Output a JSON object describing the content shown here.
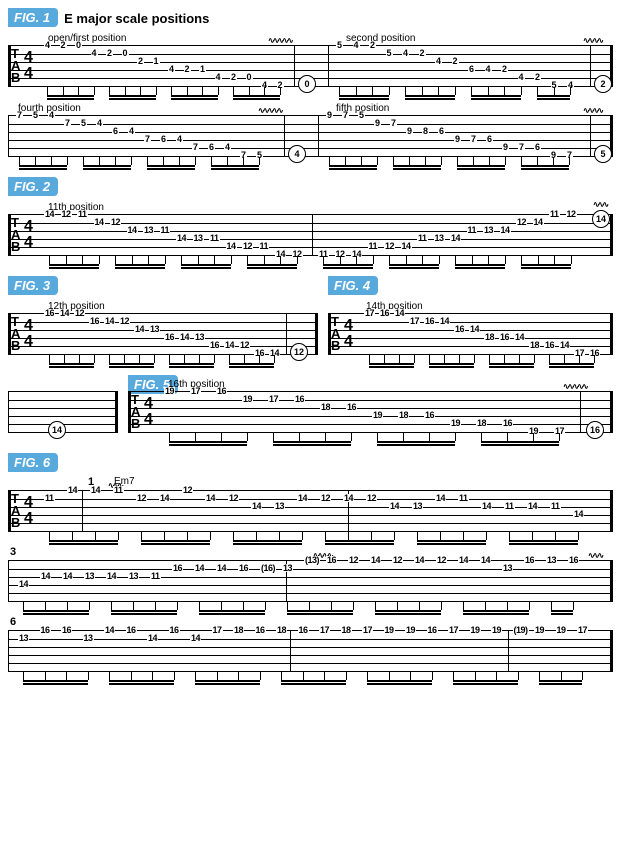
{
  "figures": {
    "fig1": {
      "label": "FIG. 1",
      "title": "E major scale positions"
    },
    "fig2": {
      "label": "FIG. 2"
    },
    "fig3": {
      "label": "FIG. 3"
    },
    "fig4": {
      "label": "FIG. 4"
    },
    "fig5": {
      "label": "FIG. 5"
    },
    "fig6": {
      "label": "FIG. 6"
    }
  },
  "positions": {
    "p1a": "open/first position",
    "p1b": "second position",
    "p1c": "fourth position",
    "p1d": "fifth position",
    "p2": "11th position",
    "p3": "12th position",
    "p4": "14th position",
    "p5": "16th position"
  },
  "clef": {
    "t": "T",
    "a": "A",
    "b": "B"
  },
  "timesig": {
    "num": "4",
    "den": "4"
  },
  "chords": {
    "em7": "Em7"
  },
  "barnums": {
    "b1": "1",
    "b3": "3",
    "b6": "6"
  },
  "endnotes": {
    "e0": "0",
    "e2": "2",
    "e4": "4",
    "e5": "5",
    "e14": "14",
    "e12": "12",
    "e16": "16"
  },
  "tabs": {
    "r1a": [
      {
        "s": 0,
        "f": "4"
      },
      {
        "s": 0,
        "f": "2"
      },
      {
        "s": 0,
        "f": "0"
      },
      {
        "s": 1,
        "f": "4"
      },
      {
        "s": 1,
        "f": "2"
      },
      {
        "s": 1,
        "f": "0"
      },
      {
        "s": 2,
        "f": "2"
      },
      {
        "s": 2,
        "f": "1"
      },
      {
        "s": 3,
        "f": "4"
      },
      {
        "s": 3,
        "f": "2"
      },
      {
        "s": 3,
        "f": "1"
      },
      {
        "s": 4,
        "f": "4"
      },
      {
        "s": 4,
        "f": "2"
      },
      {
        "s": 4,
        "f": "0"
      },
      {
        "s": 5,
        "f": "4"
      },
      {
        "s": 5,
        "f": "2"
      }
    ],
    "r1b": [
      {
        "s": 0,
        "f": "5"
      },
      {
        "s": 0,
        "f": "4"
      },
      {
        "s": 0,
        "f": "2"
      },
      {
        "s": 1,
        "f": "5"
      },
      {
        "s": 1,
        "f": "4"
      },
      {
        "s": 1,
        "f": "2"
      },
      {
        "s": 2,
        "f": "4"
      },
      {
        "s": 2,
        "f": "2"
      },
      {
        "s": 3,
        "f": "6"
      },
      {
        "s": 3,
        "f": "4"
      },
      {
        "s": 3,
        "f": "2"
      },
      {
        "s": 4,
        "f": "4"
      },
      {
        "s": 4,
        "f": "2"
      },
      {
        "s": 5,
        "f": "5"
      },
      {
        "s": 5,
        "f": "4"
      }
    ],
    "r1c": [
      {
        "s": 0,
        "f": "7"
      },
      {
        "s": 0,
        "f": "5"
      },
      {
        "s": 0,
        "f": "4"
      },
      {
        "s": 1,
        "f": "7"
      },
      {
        "s": 1,
        "f": "5"
      },
      {
        "s": 1,
        "f": "4"
      },
      {
        "s": 2,
        "f": "6"
      },
      {
        "s": 2,
        "f": "4"
      },
      {
        "s": 3,
        "f": "7"
      },
      {
        "s": 3,
        "f": "6"
      },
      {
        "s": 3,
        "f": "4"
      },
      {
        "s": 4,
        "f": "7"
      },
      {
        "s": 4,
        "f": "6"
      },
      {
        "s": 4,
        "f": "4"
      },
      {
        "s": 5,
        "f": "7"
      },
      {
        "s": 5,
        "f": "5"
      }
    ],
    "r1d": [
      {
        "s": 0,
        "f": "9"
      },
      {
        "s": 0,
        "f": "7"
      },
      {
        "s": 0,
        "f": "5"
      },
      {
        "s": 1,
        "f": "9"
      },
      {
        "s": 1,
        "f": "7"
      },
      {
        "s": 2,
        "f": "9"
      },
      {
        "s": 2,
        "f": "8"
      },
      {
        "s": 2,
        "f": "6"
      },
      {
        "s": 3,
        "f": "9"
      },
      {
        "s": 3,
        "f": "7"
      },
      {
        "s": 3,
        "f": "6"
      },
      {
        "s": 4,
        "f": "9"
      },
      {
        "s": 4,
        "f": "7"
      },
      {
        "s": 4,
        "f": "6"
      },
      {
        "s": 5,
        "f": "9"
      },
      {
        "s": 5,
        "f": "7"
      }
    ],
    "r2a": [
      {
        "s": 0,
        "f": "14"
      },
      {
        "s": 0,
        "f": "12"
      },
      {
        "s": 0,
        "f": "11"
      },
      {
        "s": 1,
        "f": "14"
      },
      {
        "s": 1,
        "f": "12"
      },
      {
        "s": 2,
        "f": "14"
      },
      {
        "s": 2,
        "f": "13"
      },
      {
        "s": 2,
        "f": "11"
      },
      {
        "s": 3,
        "f": "14"
      },
      {
        "s": 3,
        "f": "13"
      },
      {
        "s": 3,
        "f": "11"
      },
      {
        "s": 4,
        "f": "14"
      },
      {
        "s": 4,
        "f": "12"
      },
      {
        "s": 4,
        "f": "11"
      },
      {
        "s": 5,
        "f": "14"
      },
      {
        "s": 5,
        "f": "12"
      }
    ],
    "r2b": [
      {
        "s": 5,
        "f": "11"
      },
      {
        "s": 5,
        "f": "12"
      },
      {
        "s": 5,
        "f": "14"
      },
      {
        "s": 4,
        "f": "11"
      },
      {
        "s": 4,
        "f": "12"
      },
      {
        "s": 4,
        "f": "14"
      },
      {
        "s": 3,
        "f": "11"
      },
      {
        "s": 3,
        "f": "13"
      },
      {
        "s": 3,
        "f": "14"
      },
      {
        "s": 2,
        "f": "11"
      },
      {
        "s": 2,
        "f": "13"
      },
      {
        "s": 2,
        "f": "14"
      },
      {
        "s": 1,
        "f": "12"
      },
      {
        "s": 1,
        "f": "14"
      },
      {
        "s": 0,
        "f": "11"
      },
      {
        "s": 0,
        "f": "12"
      }
    ],
    "r3": [
      {
        "s": 0,
        "f": "16"
      },
      {
        "s": 0,
        "f": "14"
      },
      {
        "s": 0,
        "f": "12"
      },
      {
        "s": 1,
        "f": "16"
      },
      {
        "s": 1,
        "f": "14"
      },
      {
        "s": 1,
        "f": "12"
      },
      {
        "s": 2,
        "f": "14"
      },
      {
        "s": 2,
        "f": "13"
      },
      {
        "s": 3,
        "f": "16"
      },
      {
        "s": 3,
        "f": "14"
      },
      {
        "s": 3,
        "f": "13"
      },
      {
        "s": 4,
        "f": "16"
      },
      {
        "s": 4,
        "f": "14"
      },
      {
        "s": 4,
        "f": "12"
      },
      {
        "s": 5,
        "f": "16"
      },
      {
        "s": 5,
        "f": "14"
      }
    ],
    "r4": [
      {
        "s": 0,
        "f": "17"
      },
      {
        "s": 0,
        "f": "16"
      },
      {
        "s": 0,
        "f": "14"
      },
      {
        "s": 1,
        "f": "17"
      },
      {
        "s": 1,
        "f": "16"
      },
      {
        "s": 1,
        "f": "14"
      },
      {
        "s": 2,
        "f": "16"
      },
      {
        "s": 2,
        "f": "14"
      },
      {
        "s": 3,
        "f": "18"
      },
      {
        "s": 3,
        "f": "16"
      },
      {
        "s": 3,
        "f": "14"
      },
      {
        "s": 4,
        "f": "18"
      },
      {
        "s": 4,
        "f": "16"
      },
      {
        "s": 4,
        "f": "14"
      },
      {
        "s": 5,
        "f": "17"
      },
      {
        "s": 5,
        "f": "16"
      }
    ],
    "r5": [
      {
        "s": 0,
        "f": "19"
      },
      {
        "s": 0,
        "f": "17"
      },
      {
        "s": 0,
        "f": "16"
      },
      {
        "s": 1,
        "f": "19"
      },
      {
        "s": 1,
        "f": "17"
      },
      {
        "s": 1,
        "f": "16"
      },
      {
        "s": 2,
        "f": "18"
      },
      {
        "s": 2,
        "f": "16"
      },
      {
        "s": 3,
        "f": "19"
      },
      {
        "s": 3,
        "f": "18"
      },
      {
        "s": 3,
        "f": "16"
      },
      {
        "s": 4,
        "f": "19"
      },
      {
        "s": 4,
        "f": "18"
      },
      {
        "s": 4,
        "f": "16"
      },
      {
        "s": 5,
        "f": "19"
      },
      {
        "s": 5,
        "f": "17"
      }
    ],
    "r6a": [
      {
        "s": 1,
        "f": "11"
      },
      {
        "s": 0,
        "f": "14"
      },
      {
        "s": 0,
        "f": "14"
      },
      {
        "s": 0,
        "f": "11"
      },
      {
        "s": 1,
        "f": "12"
      },
      {
        "s": 1,
        "f": "14"
      },
      {
        "s": 0,
        "f": "12"
      },
      {
        "s": 1,
        "f": "14"
      },
      {
        "s": 1,
        "f": "12"
      },
      {
        "s": 2,
        "f": "14"
      },
      {
        "s": 2,
        "f": "13"
      },
      {
        "s": 1,
        "f": "14"
      },
      {
        "s": 1,
        "f": "12"
      },
      {
        "s": 1,
        "f": "14"
      },
      {
        "s": 1,
        "f": "12"
      },
      {
        "s": 2,
        "f": "14"
      },
      {
        "s": 2,
        "f": "13"
      },
      {
        "s": 1,
        "f": "14"
      },
      {
        "s": 1,
        "f": "11"
      },
      {
        "s": 2,
        "f": "14"
      },
      {
        "s": 2,
        "f": "11"
      },
      {
        "s": 2,
        "f": "14"
      },
      {
        "s": 2,
        "f": "11"
      },
      {
        "s": 3,
        "f": "14"
      }
    ],
    "r6b": [
      {
        "s": 3,
        "f": "14"
      },
      {
        "s": 2,
        "f": "14"
      },
      {
        "s": 2,
        "f": "14"
      },
      {
        "s": 2,
        "f": "13"
      },
      {
        "s": 2,
        "f": "14"
      },
      {
        "s": 2,
        "f": "13"
      },
      {
        "s": 2,
        "f": "11"
      },
      {
        "s": 1,
        "f": "16"
      },
      {
        "s": 1,
        "f": "14"
      },
      {
        "s": 1,
        "f": "14"
      },
      {
        "s": 1,
        "f": "16"
      },
      {
        "s": 1,
        "f": "(16)"
      },
      {
        "s": 1,
        "f": "13"
      },
      {
        "s": 0,
        "f": "(13)"
      },
      {
        "s": 0,
        "f": "16"
      },
      {
        "s": 0,
        "f": "12"
      },
      {
        "s": 0,
        "f": "14"
      },
      {
        "s": 0,
        "f": "12"
      },
      {
        "s": 0,
        "f": "14"
      },
      {
        "s": 0,
        "f": "12"
      },
      {
        "s": 0,
        "f": "14"
      },
      {
        "s": 0,
        "f": "14"
      },
      {
        "s": 1,
        "f": "13"
      },
      {
        "s": 0,
        "f": "16"
      },
      {
        "s": 0,
        "f": "13"
      },
      {
        "s": 0,
        "f": "16"
      }
    ],
    "r6c": [
      {
        "s": 1,
        "f": "13"
      },
      {
        "s": 0,
        "f": "16"
      },
      {
        "s": 0,
        "f": "16"
      },
      {
        "s": 1,
        "f": "13"
      },
      {
        "s": 0,
        "f": "14"
      },
      {
        "s": 0,
        "f": "16"
      },
      {
        "s": 1,
        "f": "14"
      },
      {
        "s": 0,
        "f": "16"
      },
      {
        "s": 1,
        "f": "14"
      },
      {
        "s": 0,
        "f": "17"
      },
      {
        "s": 0,
        "f": "18"
      },
      {
        "s": 0,
        "f": "16"
      },
      {
        "s": 0,
        "f": "18"
      },
      {
        "s": 0,
        "f": "16"
      },
      {
        "s": 0,
        "f": "17"
      },
      {
        "s": 0,
        "f": "18"
      },
      {
        "s": 0,
        "f": "17"
      },
      {
        "s": 0,
        "f": "19"
      },
      {
        "s": 0,
        "f": "19"
      },
      {
        "s": 0,
        "f": "16"
      },
      {
        "s": 0,
        "f": "17"
      },
      {
        "s": 0,
        "f": "19"
      },
      {
        "s": 0,
        "f": "19"
      },
      {
        "s": 0,
        "f": "(19)"
      },
      {
        "s": 0,
        "f": "19"
      },
      {
        "s": 0,
        "f": "19"
      },
      {
        "s": 0,
        "f": "17"
      }
    ]
  },
  "style": {
    "staff_color": "#000000",
    "bg_color": "#ffffff",
    "fig_bg": "#58a9dc",
    "fig_fg": "#ffffff",
    "note_fontsize": 9,
    "string_spacing": 8
  }
}
